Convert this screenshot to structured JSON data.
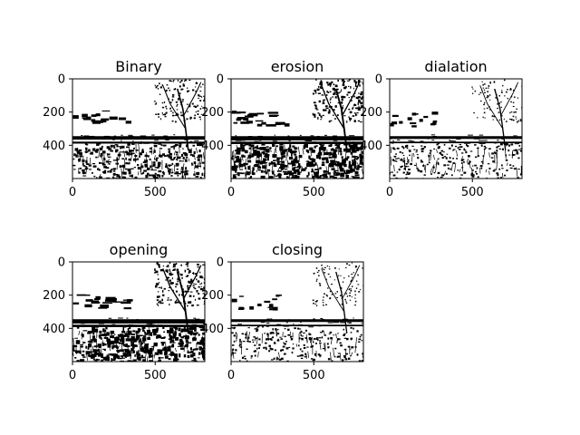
{
  "chart_data": [
    {
      "type": "image",
      "title": "Binary",
      "image_size": [
        800,
        600
      ],
      "xlim": [
        0,
        800
      ],
      "ylim": [
        600,
        0
      ],
      "xticks": [
        0,
        500
      ],
      "yticks": [
        0,
        200,
        400
      ],
      "xticklabels": [
        "0",
        "500"
      ],
      "yticklabels": [
        "0",
        "200",
        "400"
      ],
      "foreground_level": "medium",
      "colormap": "gray"
    },
    {
      "type": "image",
      "title": "erosion",
      "image_size": [
        800,
        600
      ],
      "xlim": [
        0,
        800
      ],
      "ylim": [
        600,
        0
      ],
      "xticks": [
        0,
        500
      ],
      "yticks": [
        0,
        200,
        400
      ],
      "xticklabels": [
        "0",
        "500"
      ],
      "yticklabels": [
        "0",
        "200",
        "400"
      ],
      "foreground_level": "heavy",
      "colormap": "gray"
    },
    {
      "type": "image",
      "title": "dialation",
      "image_size": [
        800,
        600
      ],
      "xlim": [
        0,
        800
      ],
      "ylim": [
        600,
        0
      ],
      "xticks": [
        0,
        500
      ],
      "yticks": [
        0,
        200,
        400
      ],
      "xticklabels": [
        "0",
        "500"
      ],
      "yticklabels": [
        "0",
        "200",
        "400"
      ],
      "foreground_level": "light",
      "colormap": "gray"
    },
    {
      "type": "image",
      "title": "opening",
      "image_size": [
        800,
        600
      ],
      "xlim": [
        0,
        800
      ],
      "ylim": [
        600,
        0
      ],
      "xticks": [
        0,
        500
      ],
      "yticks": [
        0,
        200,
        400
      ],
      "xticklabels": [
        "0",
        "500"
      ],
      "yticklabels": [
        "0",
        "200",
        "400"
      ],
      "foreground_level": "heavy",
      "colormap": "gray"
    },
    {
      "type": "image",
      "title": "closing",
      "image_size": [
        800,
        600
      ],
      "xlim": [
        0,
        800
      ],
      "ylim": [
        600,
        0
      ],
      "xticks": [
        0,
        500
      ],
      "yticks": [
        0,
        200,
        400
      ],
      "xticklabels": [
        "0",
        "500"
      ],
      "yticklabels": [
        "0",
        "200",
        "400"
      ],
      "foreground_level": "light",
      "colormap": "gray"
    }
  ]
}
